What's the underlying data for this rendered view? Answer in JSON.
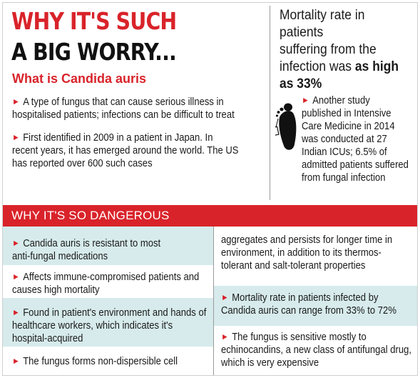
{
  "header": {
    "title_line1": "WHY IT'S SUCH",
    "title_line2": "A BIG WORRY...",
    "subhead": "What is Candida auris"
  },
  "what_is": [
    {
      "line1": "A type of fungus that can cause serious illness in",
      "line2": "hospitalised patients; infections can be difficult to treat"
    },
    {
      "line1": "First identified in 2009 in a patient in Japan. In",
      "line2": "recent years, it has emerged around the world. The US",
      "line3": "has reported over 600 such cases"
    }
  ],
  "mortality": {
    "l1": "Mortality rate in patients",
    "l2": "suffering from the",
    "l3_plain": "infection was ",
    "l3_bold": "as high",
    "l4_bold": "as 33%"
  },
  "study": {
    "l1": "Another study",
    "l2": "published in Intensive",
    "l3": "Care Medicine in 2014",
    "l4": "was conducted at 27",
    "l5": "Indian ICUs; 6.5% of",
    "l6": "admitted patients suffered",
    "l7": "from fungal infection"
  },
  "danger": {
    "title": "WHY IT'S SO DANGEROUS",
    "left": [
      {
        "l1": "Candida auris is resistant to most",
        "l2": "anti-fungal medications"
      },
      {
        "l1": "Affects immune-compromised patients and",
        "l2": "causes high mortality"
      },
      {
        "l1": "Found in patient's environment and hands of",
        "l2": "healthcare workers, which indicates it's",
        "l3": "hospital-acquired"
      },
      {
        "l1": "The fungus forms non-dispersible cell"
      }
    ],
    "right_cont": {
      "l1": "aggregates and persists for longer time in",
      "l2": "environment, in addition to its thermos-",
      "l3": "tolerant and salt-tolerant properties"
    },
    "right": [
      {
        "l1": "Mortality rate in patients infected by",
        "l2": "Candida auris can range from 33% to 72%"
      },
      {
        "l1": "The fungus is sensitive mostly to",
        "l2": "echinocandins, a new class of antifungal drug,",
        "l3": "which is very expensive"
      }
    ]
  },
  "colors": {
    "accent_red": "#d9232a",
    "row_shade": "#d7ebec",
    "text": "#1a1a1a"
  },
  "icons": {
    "bullet": "red-arrow-icon",
    "foot": "foot-tag-icon"
  }
}
